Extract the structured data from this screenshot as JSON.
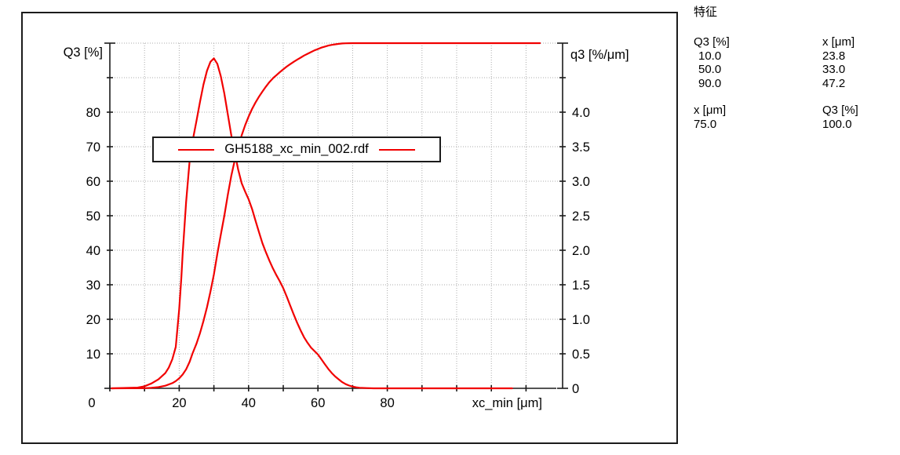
{
  "characteristics_panel": {
    "title": "特征",
    "block1": {
      "header": [
        "Q3 [%]",
        "x [μm]"
      ],
      "rows": [
        [
          "10.0",
          "23.8"
        ],
        [
          "50.0",
          "33.0"
        ],
        [
          "90.0",
          "47.2"
        ]
      ]
    },
    "block2": {
      "header": [
        "x [μm]",
        "Q3 [%]"
      ],
      "rows": [
        [
          "75.0",
          "100.0"
        ]
      ]
    }
  },
  "chart_data": {
    "type": "line",
    "title": "",
    "legend": {
      "label": "GH5188_xc_min_002.rdf"
    },
    "grid": true,
    "colors": {
      "series": "#f10000",
      "grid": "#ababab",
      "axis": "#1b1b1b"
    },
    "axes": {
      "x": {
        "label": "xc_min [μm]",
        "min": 0,
        "max": 126,
        "tick_step": 10,
        "labeled_ticks": [
          0,
          20,
          40,
          60,
          80
        ]
      },
      "y_left": {
        "label": "Q3 [%]",
        "min": 0,
        "max": 100,
        "tick_step": 10,
        "labeled_ticks": [
          10,
          20,
          30,
          40,
          50,
          60,
          70,
          80
        ]
      },
      "y_right": {
        "label": "q3 [%/μm]",
        "min": 0,
        "max": 5,
        "tick_step": 0.5,
        "labeled_ticks": [
          "0",
          "0.5",
          "1.0",
          "1.5",
          "2.0",
          "2.5",
          "3.0",
          "3.5",
          "4.0"
        ]
      }
    },
    "characteristic_values": {
      "x10_um": 23.8,
      "x50_um": 33.0,
      "x90_um": 47.2,
      "Q3_at_75um_pct": 100.0
    },
    "series": [
      {
        "name": "Q3_cumulative",
        "axis": "left",
        "points": [
          [
            0.5,
            0
          ],
          [
            10,
            0.05
          ],
          [
            12,
            0.15
          ],
          [
            14,
            0.35
          ],
          [
            16,
            0.75
          ],
          [
            18,
            1.5
          ],
          [
            19,
            2.1
          ],
          [
            20,
            2.9
          ],
          [
            21,
            4
          ],
          [
            22,
            5.5
          ],
          [
            23,
            7.7
          ],
          [
            23.8,
            10
          ],
          [
            25,
            13
          ],
          [
            26,
            16
          ],
          [
            27,
            19.5
          ],
          [
            28,
            23.5
          ],
          [
            29,
            28
          ],
          [
            30,
            33
          ],
          [
            31,
            39
          ],
          [
            32,
            44.5
          ],
          [
            33,
            50
          ],
          [
            34,
            56
          ],
          [
            35,
            61.5
          ],
          [
            36,
            66
          ],
          [
            37,
            70
          ],
          [
            38,
            73.3
          ],
          [
            39,
            76.2
          ],
          [
            40,
            78.7
          ],
          [
            41,
            80.9
          ],
          [
            42,
            82.8
          ],
          [
            43,
            84.5
          ],
          [
            44,
            86
          ],
          [
            45,
            87.4
          ],
          [
            46,
            88.7
          ],
          [
            47.2,
            90
          ],
          [
            48,
            90.7
          ],
          [
            49,
            91.6
          ],
          [
            50,
            92.4
          ],
          [
            51,
            93.2
          ],
          [
            52,
            93.9
          ],
          [
            53,
            94.6
          ],
          [
            54,
            95.2
          ],
          [
            55,
            95.8
          ],
          [
            56,
            96.4
          ],
          [
            57,
            96.9
          ],
          [
            58,
            97.4
          ],
          [
            59,
            97.9
          ],
          [
            60,
            98.3
          ],
          [
            61,
            98.7
          ],
          [
            62,
            99
          ],
          [
            63,
            99.3
          ],
          [
            64,
            99.5
          ],
          [
            65,
            99.65
          ],
          [
            66,
            99.8
          ],
          [
            67,
            99.9
          ],
          [
            68,
            99.95
          ],
          [
            70,
            100
          ],
          [
            124,
            100
          ]
        ]
      },
      {
        "name": "q3_density",
        "axis": "right",
        "points": [
          [
            0.5,
            0
          ],
          [
            8,
            0.01
          ],
          [
            10,
            0.03
          ],
          [
            12,
            0.07
          ],
          [
            14,
            0.13
          ],
          [
            16,
            0.22
          ],
          [
            17,
            0.3
          ],
          [
            18,
            0.42
          ],
          [
            19,
            0.6
          ],
          [
            20,
            1.15
          ],
          [
            20.6,
            1.6
          ],
          [
            21,
            1.95
          ],
          [
            22,
            2.7
          ],
          [
            23,
            3.3
          ],
          [
            24,
            3.62
          ],
          [
            25,
            3.88
          ],
          [
            26,
            4.15
          ],
          [
            27,
            4.4
          ],
          [
            28,
            4.6
          ],
          [
            29,
            4.73
          ],
          [
            30,
            4.78
          ],
          [
            31,
            4.7
          ],
          [
            32,
            4.52
          ],
          [
            33,
            4.27
          ],
          [
            34,
            3.97
          ],
          [
            35,
            3.67
          ],
          [
            36,
            3.42
          ],
          [
            37,
            3.17
          ],
          [
            38,
            2.97
          ],
          [
            39,
            2.85
          ],
          [
            40,
            2.74
          ],
          [
            41,
            2.6
          ],
          [
            42,
            2.43
          ],
          [
            43,
            2.26
          ],
          [
            44,
            2.1
          ],
          [
            45,
            1.97
          ],
          [
            46,
            1.85
          ],
          [
            47,
            1.74
          ],
          [
            48,
            1.64
          ],
          [
            49,
            1.55
          ],
          [
            50,
            1.45
          ],
          [
            51,
            1.33
          ],
          [
            52,
            1.2
          ],
          [
            53,
            1.07
          ],
          [
            54,
            0.95
          ],
          [
            55,
            0.84
          ],
          [
            56,
            0.74
          ],
          [
            57,
            0.66
          ],
          [
            58,
            0.59
          ],
          [
            59,
            0.54
          ],
          [
            60,
            0.49
          ],
          [
            61,
            0.42
          ],
          [
            62,
            0.35
          ],
          [
            63,
            0.28
          ],
          [
            64,
            0.22
          ],
          [
            65,
            0.17
          ],
          [
            66,
            0.13
          ],
          [
            67,
            0.09
          ],
          [
            68,
            0.06
          ],
          [
            69,
            0.04
          ],
          [
            70,
            0.025
          ],
          [
            71,
            0.015
          ],
          [
            72,
            0.008
          ],
          [
            74,
            0.003
          ],
          [
            76,
            0
          ],
          [
            116,
            0
          ]
        ]
      }
    ]
  }
}
